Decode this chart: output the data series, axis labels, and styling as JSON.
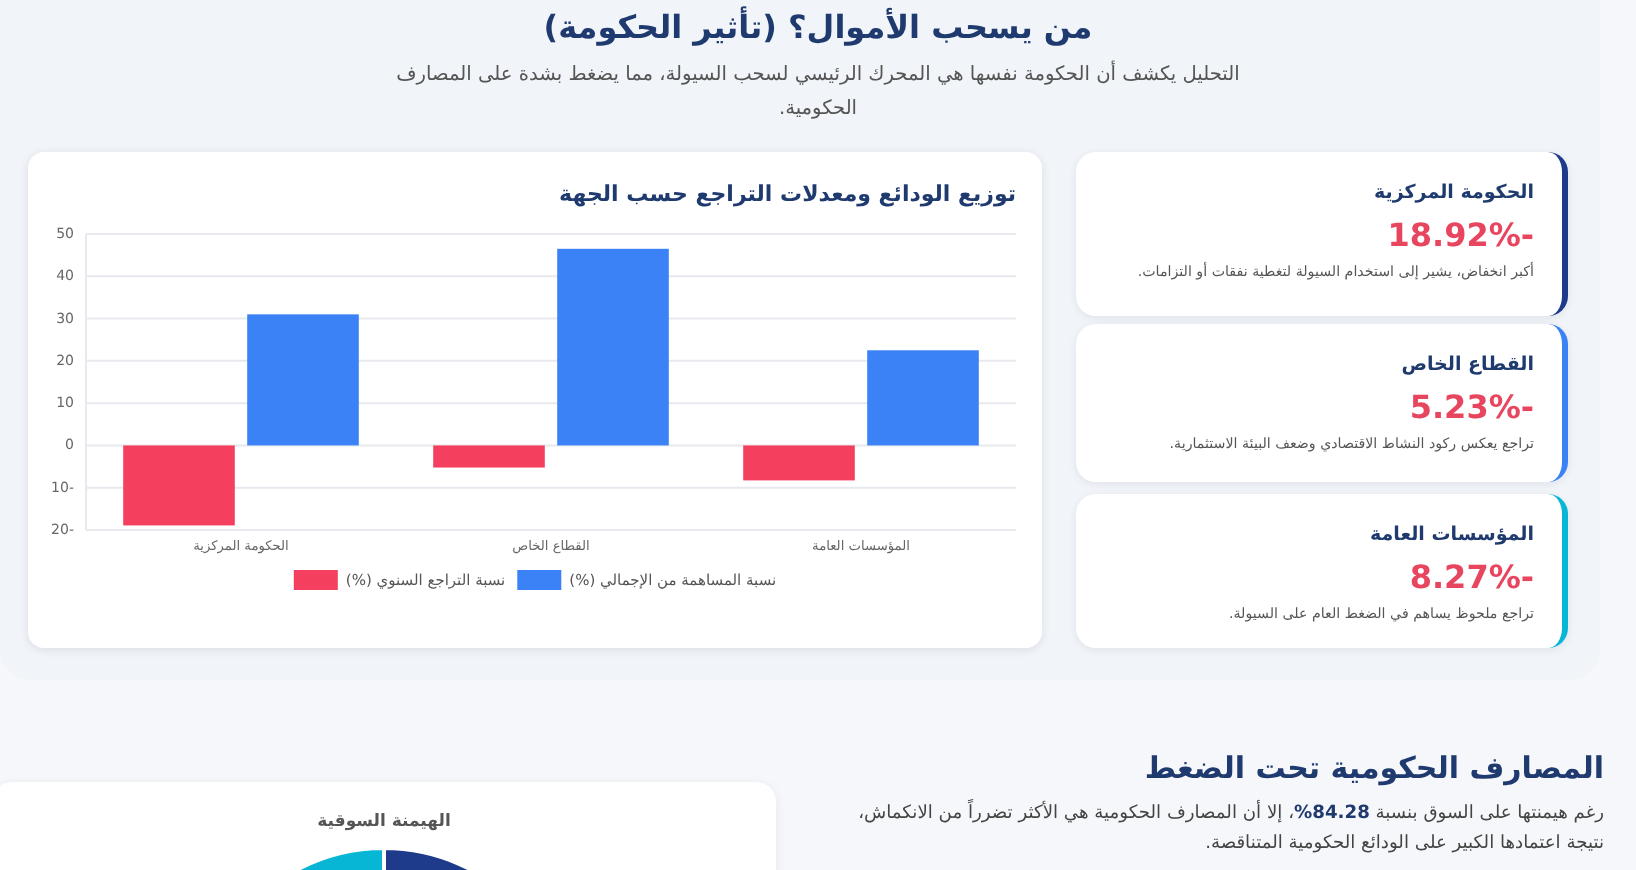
{
  "chart_data": [
    {
      "type": "other",
      "title": "من يسحب الأموال؟ (تأثير الحكومة)",
      "subtitle": "التحليل يكشف أن الحكومة نفسها هي المحرك الرئيسي لسحب السيولة، مما يضغط بشدة على المصارف الحكومية."
    },
    {
      "type": "bar",
      "title": "توزيع الودائع ومعدلات التراجع حسب الجهة",
      "categories": [
        "الحكومة المركزية",
        "القطاع الخاص",
        "المؤسسات العامة"
      ],
      "series": [
        {
          "name": "نسبة التراجع السنوي (%)",
          "color": "#f43f5e",
          "values": [
            -18.92,
            -5.23,
            -8.27
          ]
        },
        {
          "name": "نسبة المساهمة من الإجمالي (%)",
          "color": "#3b82f6",
          "values": [
            31,
            46.5,
            22.5
          ]
        }
      ],
      "ylim": [
        -20,
        50
      ],
      "yticks": [
        -20,
        -10,
        0,
        10,
        20,
        30,
        40,
        50
      ],
      "grid": "y",
      "legend": "bottom"
    },
    {
      "type": "other",
      "title": "الحكومة المركزية",
      "color": "#1e3a8a",
      "annotations": [
        "-18.92%",
        "أكبر انخفاض، يشير إلى استخدام السيولة لتغطية نفقات أو التزامات."
      ]
    },
    {
      "type": "other",
      "title": "القطاع الخاص",
      "color": "#3b82f6",
      "annotations": [
        "-5.23%",
        "تراجع يعكس ركود النشاط الاقتصادي وضعف البيئة الاستثمارية."
      ]
    },
    {
      "type": "other",
      "title": "المؤسسات العامة",
      "color": "#06b6d4",
      "annotations": [
        "-8.27%",
        "تراجع ملحوظ يساهم في الضغط العام على السيولة."
      ]
    },
    {
      "type": "other",
      "title": "المصارف الحكومية تحت الضغط",
      "subtitle": "رغم هيمنتها على السوق بنسبة 84.28%، إلا أن المصارف الحكومية هي الأكثر تضرراً من الانكماش، نتيجة اعتمادها الكبير على الودائع الحكومية المتناقصة."
    },
    {
      "type": "donut",
      "title": "الهيمنة السوقية",
      "categories": [
        null,
        null
      ],
      "values": [
        84.28,
        15.72
      ],
      "colors": [
        "#1e3a8a",
        "#06b6d4"
      ]
    }
  ]
}
